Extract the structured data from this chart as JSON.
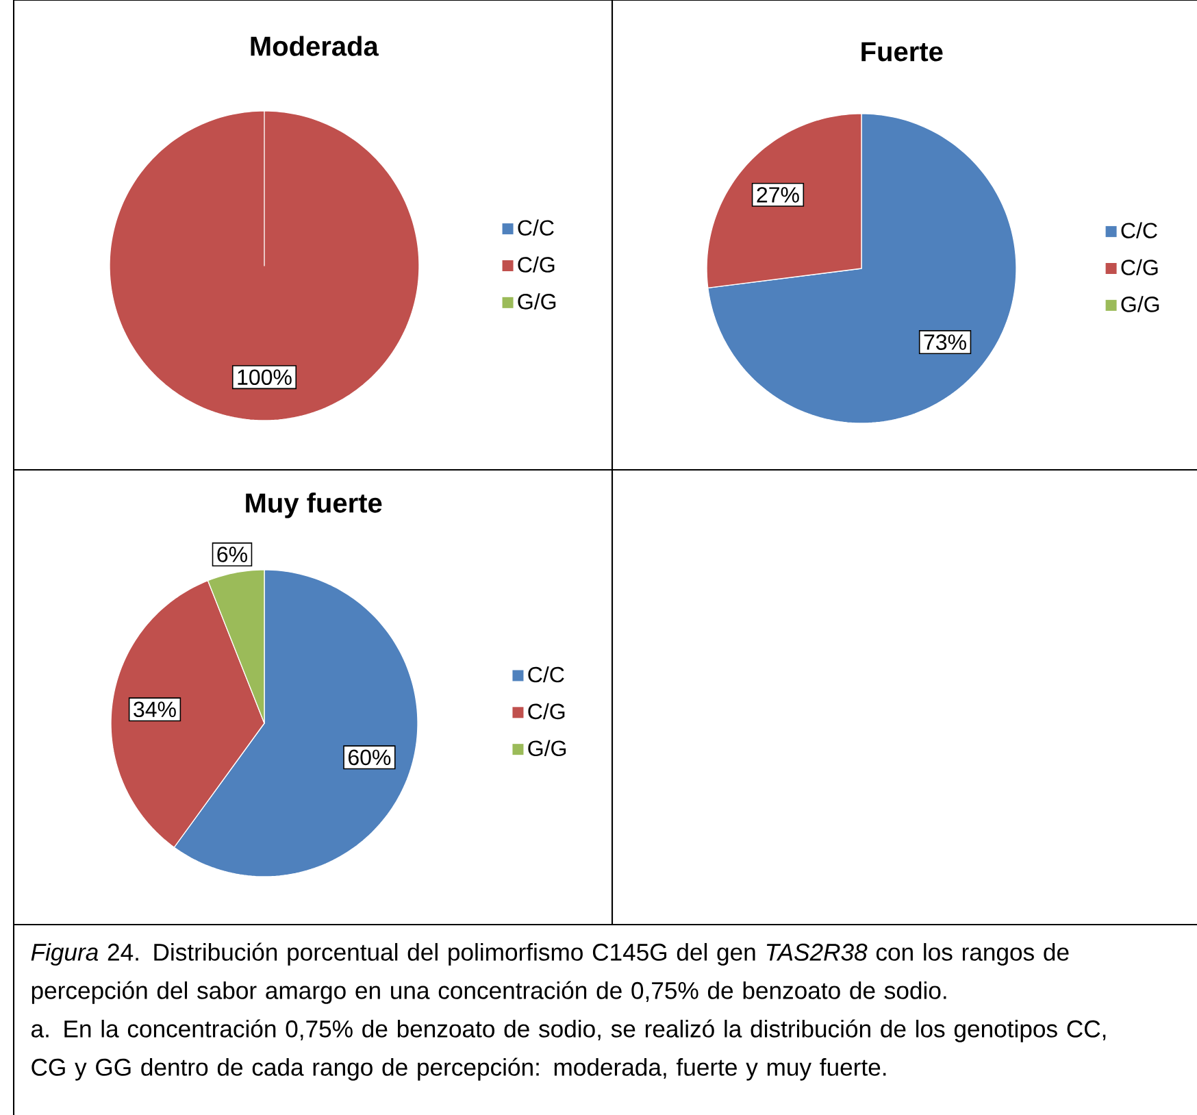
{
  "chart_data": [
    {
      "type": "pie",
      "title": "Moderada",
      "categories": [
        "C/C",
        "C/G",
        "G/G"
      ],
      "values": [
        0,
        100,
        0
      ],
      "colors": [
        "#4f81bd",
        "#c0504d",
        "#9bbb59"
      ],
      "value_labels": [
        null,
        "100%",
        null
      ],
      "legend": "right"
    },
    {
      "type": "pie",
      "title": "Fuerte",
      "categories": [
        "C/C",
        "C/G",
        "G/G"
      ],
      "values": [
        73,
        27,
        0
      ],
      "colors": [
        "#4f81bd",
        "#c0504d",
        "#9bbb59"
      ],
      "value_labels": [
        "73%",
        "27%",
        null
      ],
      "legend": "right"
    },
    {
      "type": "pie",
      "title": "Muy fuerte",
      "categories": [
        "C/C",
        "C/G",
        "G/G"
      ],
      "values": [
        60,
        34,
        6
      ],
      "colors": [
        "#4f81bd",
        "#c0504d",
        "#9bbb59"
      ],
      "value_labels": [
        "60%",
        "34%",
        "6%"
      ],
      "legend": "right",
      "annotations": [
        "*Figura* 24. Distribución porcentual del polimorfismo C145G del gen *TAS2R38* con los rangos de percepción del sabor amargo en una concentración de 0,75% de benzoato de sodio.",
        "a. En la concentración 0,75% de benzoato de sodio, se  realizó la distribución de los genotipos CC, CG y GG dentro de cada rango de percepción: moderada, fuerte y muy fuerte."
      ]
    }
  ]
}
